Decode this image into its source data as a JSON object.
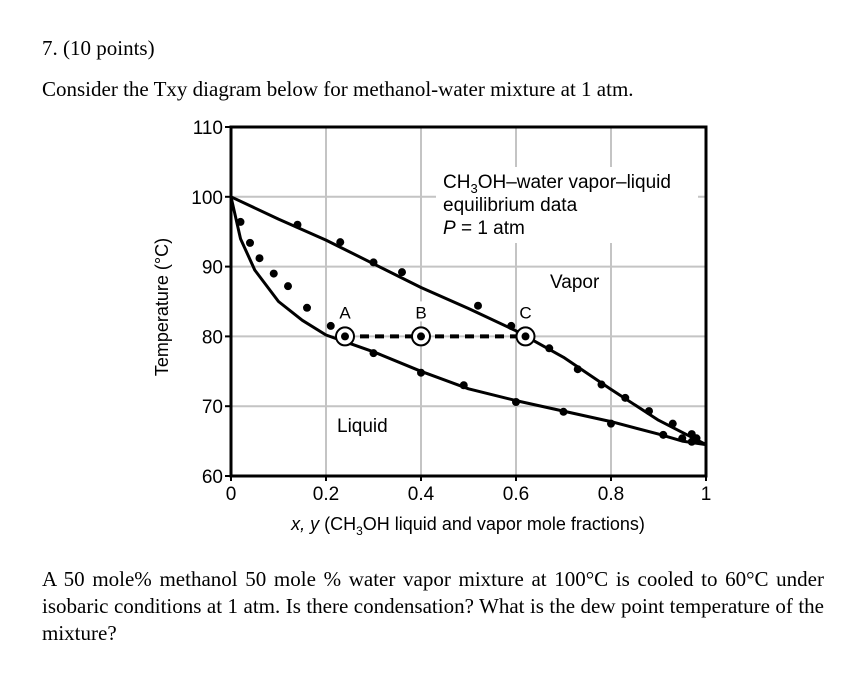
{
  "problem": {
    "heading": "7. (10 points)",
    "intro": "Consider the Txy diagram below for methanol-water mixture at 1 atm.",
    "question": "A 50 mole% methanol 50 mole % water vapor mixture at 100°C is cooled to 60°C under isobaric conditions at 1 atm. Is there condensation? What is the dew point temperature of the mixture?"
  },
  "chart_data": {
    "type": "line",
    "title_lines": [
      "CH3OH–water vapor–liquid",
      "equilibrium data",
      "P = 1 atm"
    ],
    "ylabel": "Temperature (°C)",
    "xlabel_prefix": "x, y",
    "xlabel_rest": "(CH3OH liquid and vapor mole fractions)",
    "xlim": [
      0,
      1
    ],
    "ylim": [
      60,
      110
    ],
    "x_ticks": [
      0,
      0.2,
      0.4,
      0.6,
      0.8,
      1
    ],
    "x_tick_labels": [
      "0",
      "0.2",
      "0.4",
      "0.6",
      "0.8",
      "1"
    ],
    "y_ticks": [
      60,
      70,
      80,
      90,
      100,
      110
    ],
    "y_tick_labels": [
      "60",
      "70",
      "80",
      "90",
      "100",
      "110"
    ],
    "grid": true,
    "series": [
      {
        "name": "Liquid",
        "curve": [
          [
            0,
            100
          ],
          [
            0.02,
            94
          ],
          [
            0.05,
            89.5
          ],
          [
            0.1,
            85
          ],
          [
            0.15,
            82.3
          ],
          [
            0.2,
            80.2
          ],
          [
            0.25,
            79.0
          ],
          [
            0.3,
            77.8
          ],
          [
            0.4,
            75.0
          ],
          [
            0.5,
            72.5
          ],
          [
            0.6,
            70.8
          ],
          [
            0.7,
            69.3
          ],
          [
            0.8,
            67.8
          ],
          [
            0.9,
            66.0
          ],
          [
            0.95,
            65.0
          ],
          [
            1,
            64.5
          ]
        ],
        "points": [
          [
            0.02,
            96.4
          ],
          [
            0.04,
            93.4
          ],
          [
            0.06,
            91.2
          ],
          [
            0.09,
            89.0
          ],
          [
            0.12,
            87.2
          ],
          [
            0.16,
            84.1
          ],
          [
            0.21,
            81.5
          ],
          [
            0.3,
            77.6
          ],
          [
            0.4,
            74.8
          ],
          [
            0.49,
            73.0
          ],
          [
            0.6,
            70.6
          ],
          [
            0.7,
            69.2
          ],
          [
            0.8,
            67.5
          ],
          [
            0.91,
            65.9
          ],
          [
            0.95,
            65.4
          ],
          [
            0.97,
            64.9
          ]
        ]
      },
      {
        "name": "Vapor",
        "curve": [
          [
            0,
            100
          ],
          [
            0.1,
            96.8
          ],
          [
            0.2,
            93.8
          ],
          [
            0.3,
            90.4
          ],
          [
            0.4,
            87.0
          ],
          [
            0.5,
            84.0
          ],
          [
            0.6,
            80.8
          ],
          [
            0.7,
            77.0
          ],
          [
            0.8,
            72.4
          ],
          [
            0.9,
            68.0
          ],
          [
            1,
            64.5
          ]
        ],
        "points": [
          [
            0.14,
            96.0
          ],
          [
            0.23,
            93.5
          ],
          [
            0.3,
            90.6
          ],
          [
            0.36,
            89.2
          ],
          [
            0.52,
            84.4
          ],
          [
            0.59,
            81.5
          ],
          [
            0.67,
            78.3
          ],
          [
            0.73,
            75.3
          ],
          [
            0.78,
            73.1
          ],
          [
            0.83,
            71.2
          ],
          [
            0.88,
            69.3
          ],
          [
            0.93,
            67.5
          ],
          [
            0.97,
            66.0
          ],
          [
            0.98,
            65.4
          ]
        ]
      }
    ],
    "tie_line": {
      "y": 80,
      "x_start": 0.24,
      "x_end": 0.62
    },
    "points_marked": [
      {
        "label": "A",
        "x": 0.24,
        "y": 80
      },
      {
        "label": "B",
        "x": 0.4,
        "y": 80
      },
      {
        "label": "C",
        "x": 0.62,
        "y": 80
      }
    ],
    "region_labels": {
      "vapor": "Vapor",
      "liquid": "Liquid"
    }
  }
}
